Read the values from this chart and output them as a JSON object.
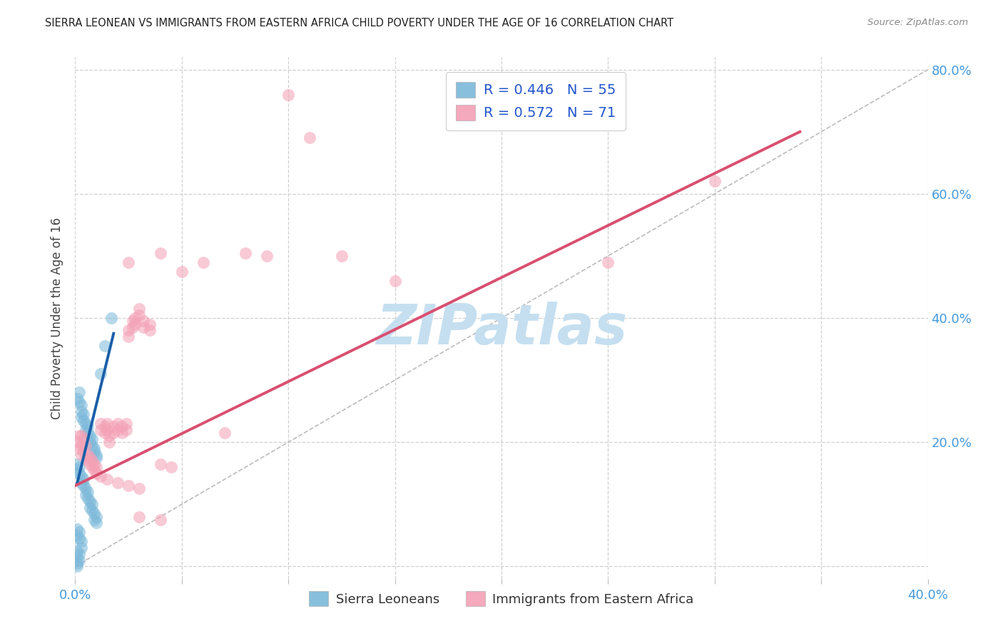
{
  "title": "SIERRA LEONEAN VS IMMIGRANTS FROM EASTERN AFRICA CHILD POVERTY UNDER THE AGE OF 16 CORRELATION CHART",
  "source": "Source: ZipAtlas.com",
  "ylabel": "Child Poverty Under the Age of 16",
  "xlim": [
    0.0,
    0.4
  ],
  "ylim": [
    -0.02,
    0.82
  ],
  "blue_color": "#7ab8d9",
  "pink_color": "#f4a0b5",
  "trendline_blue_color": "#1a5fa8",
  "trendline_pink_color": "#d94f70",
  "watermark": "ZIPatlas",
  "watermark_color": "#c5dff0",
  "background_color": "#ffffff",
  "grid_color": "#d0d0d0",
  "blue_scatter": [
    [
      0.001,
      0.27
    ],
    [
      0.002,
      0.265
    ],
    [
      0.002,
      0.28
    ],
    [
      0.003,
      0.25
    ],
    [
      0.003,
      0.26
    ],
    [
      0.003,
      0.24
    ],
    [
      0.004,
      0.235
    ],
    [
      0.004,
      0.245
    ],
    [
      0.005,
      0.23
    ],
    [
      0.005,
      0.22
    ],
    [
      0.006,
      0.215
    ],
    [
      0.006,
      0.225
    ],
    [
      0.007,
      0.21
    ],
    [
      0.007,
      0.2
    ],
    [
      0.008,
      0.205
    ],
    [
      0.008,
      0.195
    ],
    [
      0.009,
      0.19
    ],
    [
      0.009,
      0.185
    ],
    [
      0.01,
      0.18
    ],
    [
      0.01,
      0.175
    ],
    [
      0.001,
      0.165
    ],
    [
      0.001,
      0.155
    ],
    [
      0.002,
      0.16
    ],
    [
      0.002,
      0.15
    ],
    [
      0.003,
      0.145
    ],
    [
      0.003,
      0.135
    ],
    [
      0.004,
      0.14
    ],
    [
      0.004,
      0.13
    ],
    [
      0.005,
      0.125
    ],
    [
      0.005,
      0.115
    ],
    [
      0.006,
      0.12
    ],
    [
      0.006,
      0.11
    ],
    [
      0.007,
      0.105
    ],
    [
      0.007,
      0.095
    ],
    [
      0.008,
      0.1
    ],
    [
      0.008,
      0.09
    ],
    [
      0.009,
      0.085
    ],
    [
      0.009,
      0.075
    ],
    [
      0.01,
      0.08
    ],
    [
      0.01,
      0.07
    ],
    [
      0.001,
      0.06
    ],
    [
      0.001,
      0.05
    ],
    [
      0.002,
      0.055
    ],
    [
      0.002,
      0.045
    ],
    [
      0.003,
      0.04
    ],
    [
      0.003,
      0.03
    ],
    [
      0.001,
      0.025
    ],
    [
      0.001,
      0.015
    ],
    [
      0.002,
      0.02
    ],
    [
      0.002,
      0.01
    ],
    [
      0.001,
      0.005
    ],
    [
      0.001,
      0.0
    ],
    [
      0.014,
      0.355
    ],
    [
      0.017,
      0.4
    ],
    [
      0.012,
      0.31
    ]
  ],
  "pink_scatter": [
    [
      0.001,
      0.2
    ],
    [
      0.002,
      0.19
    ],
    [
      0.002,
      0.21
    ],
    [
      0.003,
      0.195
    ],
    [
      0.003,
      0.18
    ],
    [
      0.003,
      0.21
    ],
    [
      0.004,
      0.185
    ],
    [
      0.004,
      0.205
    ],
    [
      0.005,
      0.175
    ],
    [
      0.005,
      0.195
    ],
    [
      0.006,
      0.18
    ],
    [
      0.006,
      0.17
    ],
    [
      0.007,
      0.175
    ],
    [
      0.007,
      0.165
    ],
    [
      0.008,
      0.17
    ],
    [
      0.008,
      0.16
    ],
    [
      0.009,
      0.165
    ],
    [
      0.009,
      0.155
    ],
    [
      0.01,
      0.16
    ],
    [
      0.01,
      0.15
    ],
    [
      0.012,
      0.23
    ],
    [
      0.012,
      0.22
    ],
    [
      0.014,
      0.215
    ],
    [
      0.014,
      0.225
    ],
    [
      0.015,
      0.23
    ],
    [
      0.015,
      0.22
    ],
    [
      0.016,
      0.2
    ],
    [
      0.016,
      0.21
    ],
    [
      0.018,
      0.225
    ],
    [
      0.018,
      0.215
    ],
    [
      0.02,
      0.23
    ],
    [
      0.02,
      0.22
    ],
    [
      0.022,
      0.225
    ],
    [
      0.022,
      0.215
    ],
    [
      0.024,
      0.23
    ],
    [
      0.024,
      0.22
    ],
    [
      0.025,
      0.38
    ],
    [
      0.025,
      0.37
    ],
    [
      0.027,
      0.385
    ],
    [
      0.027,
      0.395
    ],
    [
      0.028,
      0.4
    ],
    [
      0.028,
      0.39
    ],
    [
      0.03,
      0.405
    ],
    [
      0.03,
      0.415
    ],
    [
      0.032,
      0.395
    ],
    [
      0.032,
      0.385
    ],
    [
      0.035,
      0.38
    ],
    [
      0.035,
      0.39
    ],
    [
      0.012,
      0.145
    ],
    [
      0.015,
      0.14
    ],
    [
      0.02,
      0.135
    ],
    [
      0.025,
      0.13
    ],
    [
      0.03,
      0.125
    ],
    [
      0.04,
      0.165
    ],
    [
      0.045,
      0.16
    ],
    [
      0.05,
      0.475
    ],
    [
      0.06,
      0.49
    ],
    [
      0.07,
      0.215
    ],
    [
      0.08,
      0.505
    ],
    [
      0.09,
      0.5
    ],
    [
      0.1,
      0.76
    ],
    [
      0.11,
      0.69
    ],
    [
      0.125,
      0.5
    ],
    [
      0.15,
      0.46
    ],
    [
      0.03,
      0.08
    ],
    [
      0.04,
      0.075
    ],
    [
      0.025,
      0.49
    ],
    [
      0.04,
      0.505
    ],
    [
      0.25,
      0.49
    ],
    [
      0.3,
      0.62
    ]
  ],
  "blue_trendline_x": [
    0.001,
    0.018
  ],
  "blue_trendline_y": [
    0.135,
    0.375
  ],
  "pink_trendline_x": [
    0.0,
    0.34
  ],
  "pink_trendline_y": [
    0.13,
    0.7
  ],
  "ref_line_x": [
    0.0,
    0.4
  ],
  "ref_line_y": [
    0.0,
    0.8
  ]
}
